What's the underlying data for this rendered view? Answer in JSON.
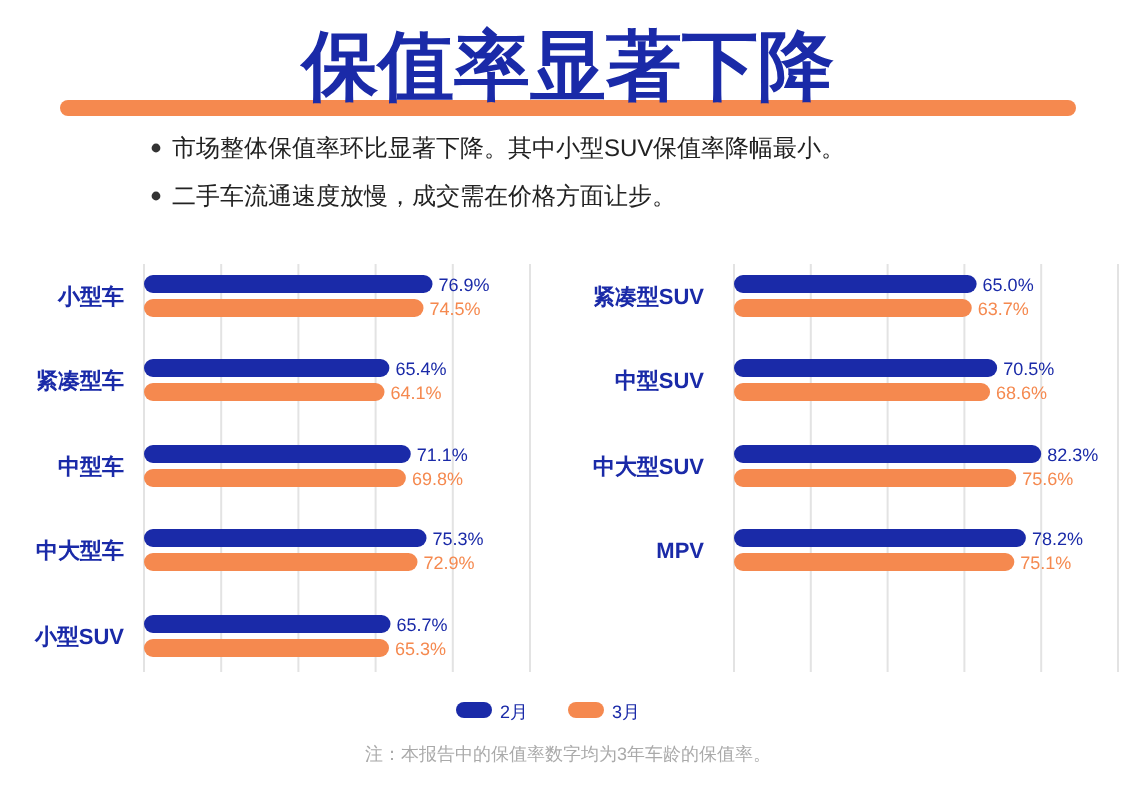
{
  "chart_data": [
    {
      "type": "bar",
      "orientation": "horizontal",
      "title": "保值率显著下降",
      "annotations": [
        "市场整体保值率环比显著下降。其中小型SUV保值率降幅最小。",
        "二手车流通速度放慢，成交需在价格方面让步。"
      ],
      "categories": [
        "小型车",
        "紧凑型车",
        "中型车",
        "中大型车",
        "小型SUV"
      ],
      "series": [
        {
          "name": "2月",
          "color": "#1a2aa8",
          "values": [
            76.9,
            65.4,
            71.1,
            75.3,
            65.7
          ],
          "value_labels": [
            "76.9%",
            "65.4%",
            "71.1%",
            "75.3%",
            "65.7%"
          ]
        },
        {
          "name": "3月",
          "color": "#f5894f",
          "values": [
            74.5,
            64.1,
            69.8,
            72.9,
            65.3
          ],
          "value_labels": [
            "74.5%",
            "64.1%",
            "69.8%",
            "72.9%",
            "65.3%"
          ]
        }
      ],
      "grid": "x",
      "legend": "bottom"
    },
    {
      "type": "bar",
      "orientation": "horizontal",
      "annotations": [
        "注：本报告中的保值率数字均为3年车龄的保值率。"
      ],
      "categories": [
        "紧凑型SUV",
        "中型SUV",
        "中大型SUV",
        "MPV"
      ],
      "series": [
        {
          "name": "2月",
          "color": "#1a2aa8",
          "values": [
            65.0,
            70.5,
            82.3,
            78.2
          ],
          "value_labels": [
            "65.0%",
            "70.5%",
            "82.3%",
            "78.2%"
          ]
        },
        {
          "name": "3月",
          "color": "#f5894f",
          "values": [
            63.7,
            68.6,
            75.6,
            75.1
          ],
          "value_labels": [
            "63.7%",
            "68.6%",
            "75.6%",
            "75.1%"
          ]
        }
      ],
      "grid": "x",
      "legend": "bottom"
    }
  ]
}
